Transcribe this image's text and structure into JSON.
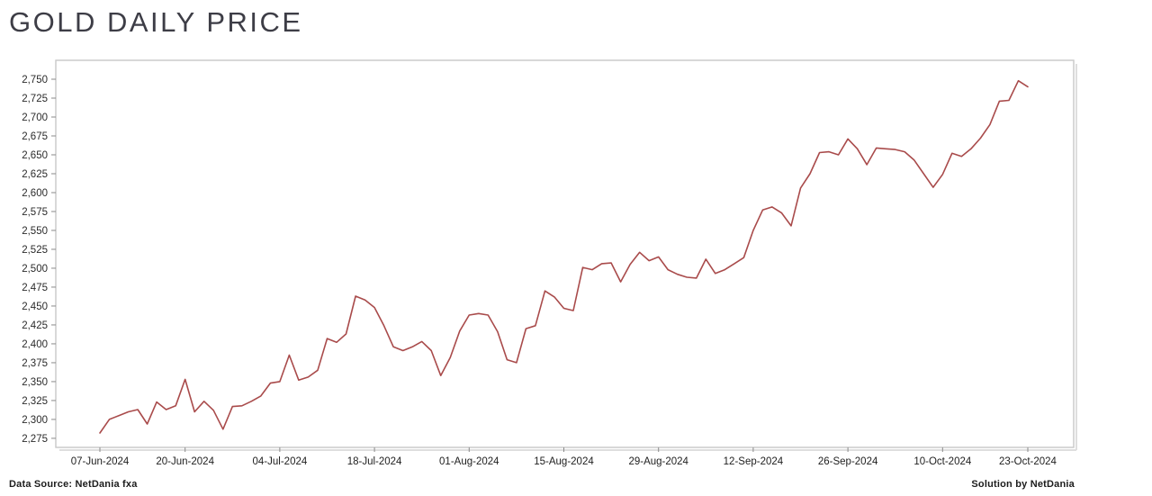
{
  "page": {
    "title": "GOLD DAILY PRICE"
  },
  "footer": {
    "left": "Data Source: NetDania fxa",
    "right": "Solution by NetDania"
  },
  "chart_data": {
    "type": "line",
    "title": "GOLD DAILY PRICE",
    "xlabel": "",
    "ylabel": "",
    "legend": "none",
    "grid": false,
    "line_color": "#a94b4b",
    "frame_color": "#c8c8c8",
    "tick_color": "#8a8a8a",
    "label_color": "#2b2b2b",
    "ylim": [
      2263,
      2775
    ],
    "y_ticks": [
      2275,
      2300,
      2325,
      2350,
      2375,
      2400,
      2425,
      2450,
      2475,
      2500,
      2525,
      2550,
      2575,
      2600,
      2625,
      2650,
      2675,
      2700,
      2725,
      2750
    ],
    "x_tick_labels": [
      "07-Jun-2024",
      "20-Jun-2024",
      "04-Jul-2024",
      "18-Jul-2024",
      "01-Aug-2024",
      "15-Aug-2024",
      "29-Aug-2024",
      "12-Sep-2024",
      "26-Sep-2024",
      "10-Oct-2024",
      "23-Oct-2024"
    ],
    "x_tick_indices": [
      0,
      9,
      19,
      29,
      39,
      49,
      59,
      69,
      79,
      89,
      98
    ],
    "x": [
      "07-Jun-2024",
      "10-Jun-2024",
      "11-Jun-2024",
      "12-Jun-2024",
      "13-Jun-2024",
      "14-Jun-2024",
      "17-Jun-2024",
      "18-Jun-2024",
      "19-Jun-2024",
      "20-Jun-2024",
      "21-Jun-2024",
      "24-Jun-2024",
      "25-Jun-2024",
      "26-Jun-2024",
      "27-Jun-2024",
      "28-Jun-2024",
      "01-Jul-2024",
      "02-Jul-2024",
      "03-Jul-2024",
      "04-Jul-2024",
      "05-Jul-2024",
      "08-Jul-2024",
      "09-Jul-2024",
      "10-Jul-2024",
      "11-Jul-2024",
      "12-Jul-2024",
      "15-Jul-2024",
      "16-Jul-2024",
      "17-Jul-2024",
      "18-Jul-2024",
      "19-Jul-2024",
      "22-Jul-2024",
      "23-Jul-2024",
      "24-Jul-2024",
      "25-Jul-2024",
      "26-Jul-2024",
      "29-Jul-2024",
      "30-Jul-2024",
      "31-Jul-2024",
      "01-Aug-2024",
      "02-Aug-2024",
      "05-Aug-2024",
      "06-Aug-2024",
      "07-Aug-2024",
      "08-Aug-2024",
      "09-Aug-2024",
      "12-Aug-2024",
      "13-Aug-2024",
      "14-Aug-2024",
      "15-Aug-2024",
      "16-Aug-2024",
      "19-Aug-2024",
      "20-Aug-2024",
      "21-Aug-2024",
      "22-Aug-2024",
      "23-Aug-2024",
      "26-Aug-2024",
      "27-Aug-2024",
      "28-Aug-2024",
      "29-Aug-2024",
      "30-Aug-2024",
      "02-Sep-2024",
      "03-Sep-2024",
      "04-Sep-2024",
      "05-Sep-2024",
      "06-Sep-2024",
      "09-Sep-2024",
      "10-Sep-2024",
      "11-Sep-2024",
      "12-Sep-2024",
      "13-Sep-2024",
      "16-Sep-2024",
      "17-Sep-2024",
      "18-Sep-2024",
      "19-Sep-2024",
      "20-Sep-2024",
      "23-Sep-2024",
      "24-Sep-2024",
      "25-Sep-2024",
      "26-Sep-2024",
      "27-Sep-2024",
      "30-Sep-2024",
      "01-Oct-2024",
      "02-Oct-2024",
      "03-Oct-2024",
      "04-Oct-2024",
      "07-Oct-2024",
      "08-Oct-2024",
      "09-Oct-2024",
      "10-Oct-2024",
      "11-Oct-2024",
      "14-Oct-2024",
      "15-Oct-2024",
      "16-Oct-2024",
      "17-Oct-2024",
      "18-Oct-2024",
      "21-Oct-2024",
      "22-Oct-2024",
      "23-Oct-2024"
    ],
    "values": [
      2282,
      2300,
      2305,
      2310,
      2313,
      2294,
      2323,
      2313,
      2318,
      2353,
      2310,
      2324,
      2312,
      2287,
      2317,
      2318,
      2324,
      2331,
      2348,
      2350,
      2385,
      2352,
      2356,
      2365,
      2407,
      2402,
      2413,
      2463,
      2458,
      2448,
      2424,
      2396,
      2391,
      2396,
      2403,
      2391,
      2358,
      2382,
      2417,
      2438,
      2440,
      2438,
      2416,
      2379,
      2375,
      2420,
      2424,
      2470,
      2462,
      2447,
      2444,
      2501,
      2498,
      2506,
      2507,
      2482,
      2505,
      2521,
      2510,
      2515,
      2498,
      2492,
      2488,
      2487,
      2512,
      2493,
      2498,
      2506,
      2514,
      2550,
      2577,
      2581,
      2573,
      2556,
      2606,
      2625,
      2653,
      2654,
      2650,
      2671,
      2658,
      2637,
      2659,
      2658,
      2657,
      2654,
      2643,
      2625,
      2607,
      2624,
      2652,
      2648,
      2658,
      2672,
      2690,
      2721,
      2722,
      2748,
      2740
    ]
  }
}
